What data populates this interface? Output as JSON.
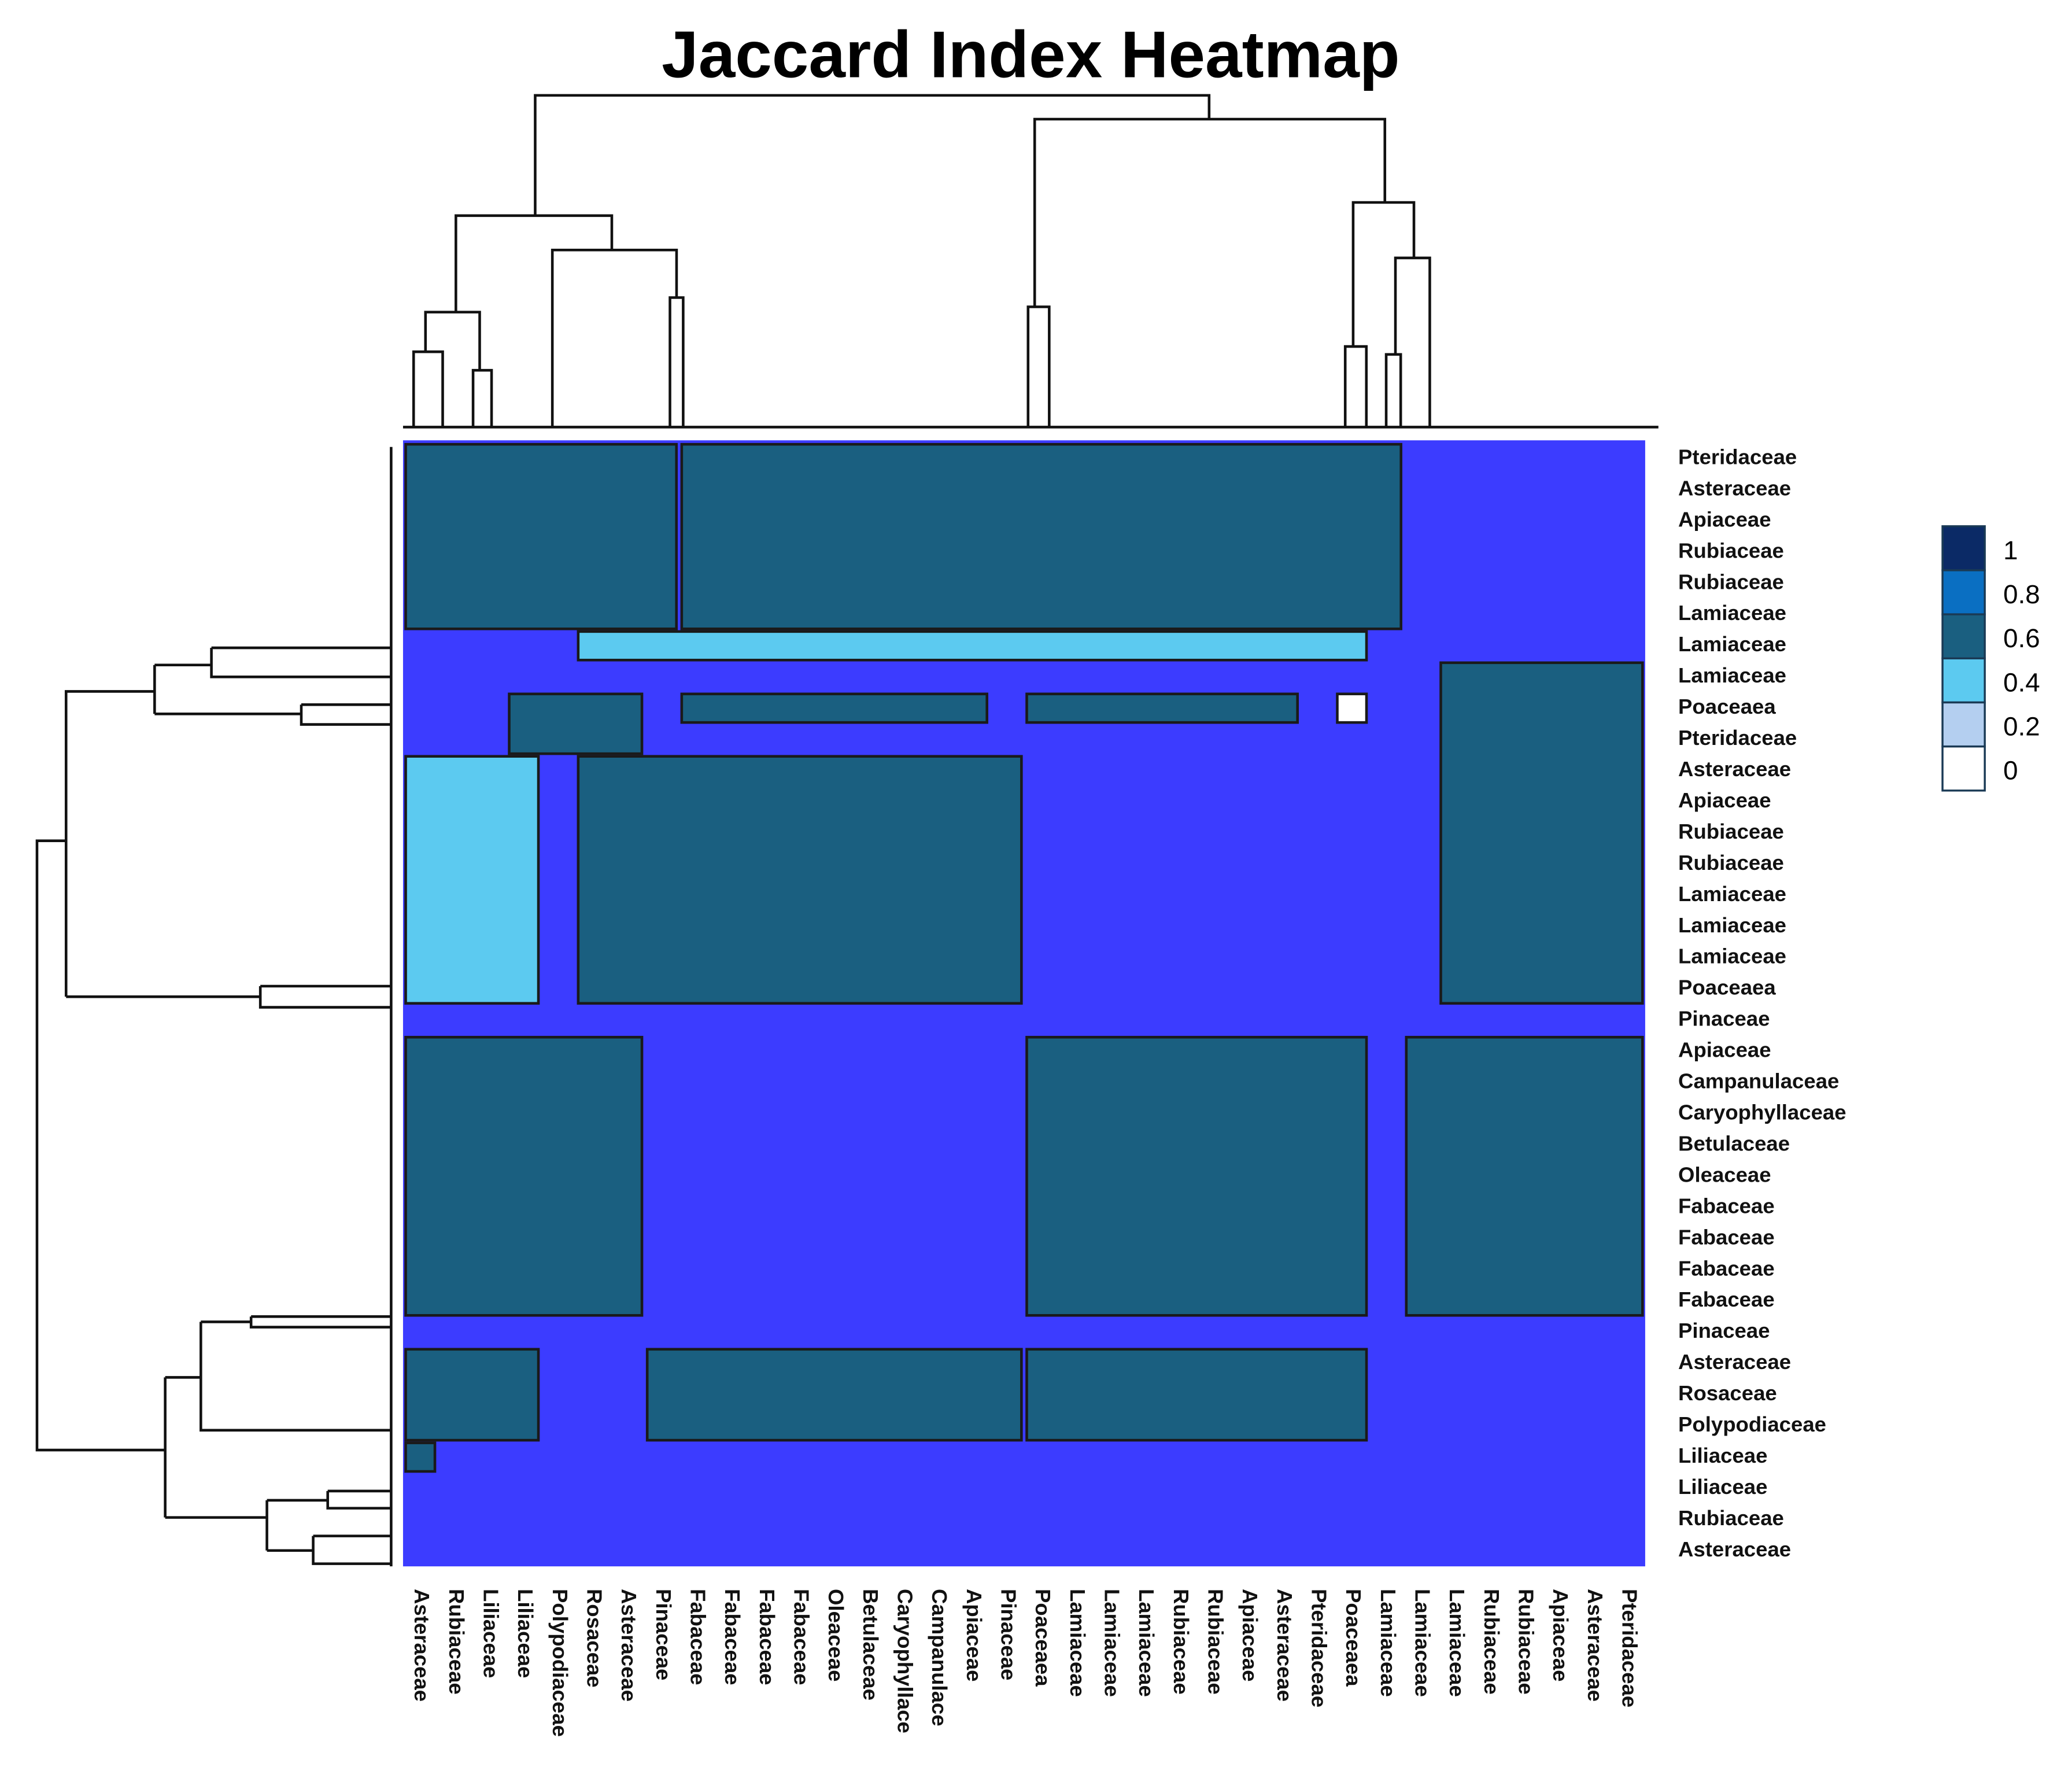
{
  "chart_data": {
    "type": "heatmap",
    "title": "Jaccard Index Heatmap",
    "row_labels": [
      "Pteridaceae",
      "Asteraceae",
      "Apiaceae",
      "Rubiaceae",
      "Rubiaceae",
      "Lamiaceae",
      "Lamiaceae",
      "Lamiaceae",
      "Poaceaea",
      "Pteridaceae",
      "Asteraceae",
      "Apiaceae",
      "Rubiaceae",
      "Rubiaceae",
      "Lamiaceae",
      "Lamiaceae",
      "Lamiaceae",
      "Poaceaea",
      "Pinaceae",
      "Apiaceae",
      "Campanulaceae",
      "Caryophyllaceae",
      "Betulaceae",
      "Oleaceae",
      "Fabaceae",
      "Fabaceae",
      "Fabaceae",
      "Fabaceae",
      "Pinaceae",
      "Asteraceae",
      "Rosaceae",
      "Polypodiaceae",
      "Liliaceae",
      "Liliaceae",
      "Rubiaceae",
      "Asteraceae"
    ],
    "col_labels": [
      "Asteraceae",
      "Rubiaceae",
      "Liliaceae",
      "Liliaceae",
      "Polypodiaceae",
      "Rosaceae",
      "Asteraceae",
      "Pinaceae",
      "Fabaceae",
      "Fabaceae",
      "Fabaceae",
      "Fabaceae",
      "Oleaceae",
      "Betulaceae",
      "Caryophyllace",
      "Campanulace",
      "Apiaceae",
      "Pinaceae",
      "Poaceaea",
      "Lamiaceae",
      "Lamiaceae",
      "Lamiaceae",
      "Rubiaceae",
      "Rubiaceae",
      "Apiaceae",
      "Asteraceae",
      "Pteridaceae",
      "Poaceaea",
      "Lamiaceae",
      "Lamiaceae",
      "Lamiaceae",
      "Rubiaceae",
      "Rubiaceae",
      "Apiaceae",
      "Asteraceae",
      "Pteridaceae"
    ],
    "background_color": "#3c3cff",
    "blocks": [
      {
        "rows": [
          0,
          6
        ],
        "cols": [
          0,
          8
        ],
        "value": 0.6
      },
      {
        "rows": [
          0,
          6
        ],
        "cols": [
          8,
          29
        ],
        "value": 0.6
      },
      {
        "rows": [
          6,
          7
        ],
        "cols": [
          5,
          28
        ],
        "value": 0.4
      },
      {
        "rows": [
          8,
          10
        ],
        "cols": [
          3,
          7
        ],
        "value": 0.6
      },
      {
        "rows": [
          8,
          9
        ],
        "cols": [
          8,
          17
        ],
        "value": 0.6
      },
      {
        "rows": [
          8,
          9
        ],
        "cols": [
          18,
          26
        ],
        "value": 0.6
      },
      {
        "rows": [
          8,
          9
        ],
        "cols": [
          27,
          28
        ],
        "value": 0
      },
      {
        "rows": [
          7,
          18
        ],
        "cols": [
          30,
          36
        ],
        "value": 0.6
      },
      {
        "rows": [
          10,
          18
        ],
        "cols": [
          0,
          4
        ],
        "value": 0.4
      },
      {
        "rows": [
          10,
          18
        ],
        "cols": [
          5,
          18
        ],
        "value": 0.6
      },
      {
        "rows": [
          19,
          28
        ],
        "cols": [
          0,
          7
        ],
        "value": 0.6
      },
      {
        "rows": [
          19,
          28
        ],
        "cols": [
          18,
          28
        ],
        "value": 0.6
      },
      {
        "rows": [
          19,
          28
        ],
        "cols": [
          29,
          36
        ],
        "value": 0.6
      },
      {
        "rows": [
          29,
          32
        ],
        "cols": [
          0,
          4
        ],
        "value": 0.6
      },
      {
        "rows": [
          29,
          32
        ],
        "cols": [
          7,
          18
        ],
        "value": 0.6
      },
      {
        "rows": [
          29,
          32
        ],
        "cols": [
          18,
          28
        ],
        "value": 0.6
      },
      {
        "rows": [
          32,
          33
        ],
        "cols": [
          0,
          1
        ],
        "value": 0.6
      }
    ],
    "legend": {
      "ticks": [
        1,
        0.8,
        0.6,
        0.4,
        0.2,
        0
      ],
      "colors": [
        "#0b2a66",
        "#0a6fc2",
        "#1a5f80",
        "#5ccaf0",
        "#b4cff0",
        "#ffffff"
      ]
    }
  }
}
